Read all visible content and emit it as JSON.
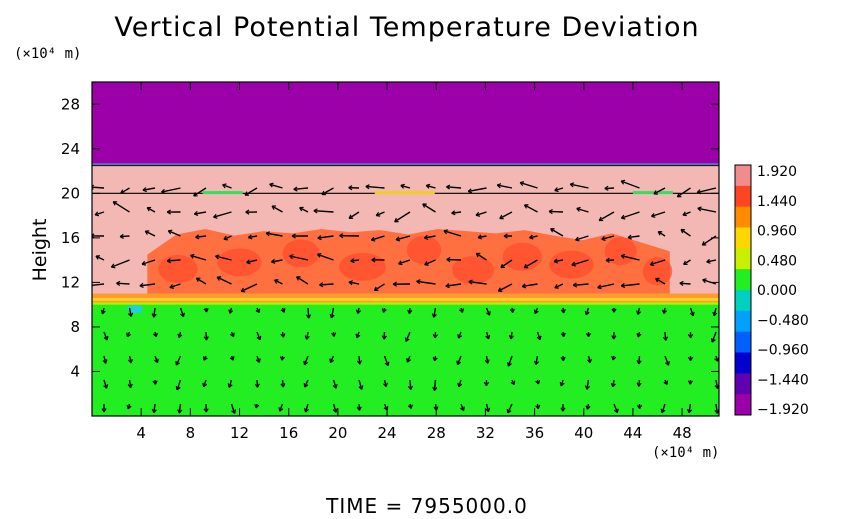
{
  "chart_data": {
    "type": "heatmap",
    "title": "Vertical Potential Temperature Deviation",
    "ylabel": "Height",
    "xlabel": "",
    "x_unit": "(×10⁴ m)",
    "y_unit": "(×10⁴ m)",
    "xlim": [
      0,
      51
    ],
    "ylim": [
      0,
      30
    ],
    "x_ticks": [
      "4",
      "8",
      "12",
      "16",
      "20",
      "24",
      "28",
      "32",
      "36",
      "40",
      "44",
      "48"
    ],
    "y_ticks": [
      "4",
      "8",
      "12",
      "16",
      "20",
      "24",
      "28"
    ],
    "colorbar": {
      "labels": [
        "1.920",
        "1.440",
        "0.960",
        "0.480",
        "0.000",
        "−0.480",
        "−0.960",
        "−1.440",
        "−1.920"
      ],
      "colors": [
        "#f08c8c",
        "#ff4422",
        "#ff8c00",
        "#ffd700",
        "#c8f000",
        "#22ee22",
        "#00d0c0",
        "#00a0ff",
        "#0060ff",
        "#0000d0",
        "#6000b0",
        "#9c00a8"
      ]
    },
    "layers": [
      {
        "name": "top",
        "y_range": [
          22.5,
          30
        ],
        "value": -1.92,
        "color": "#9c00a8"
      },
      {
        "name": "upper band",
        "y_range": [
          20,
          22.5
        ],
        "value": 1.92,
        "color": "#f4b8b4"
      },
      {
        "name": "middle band",
        "y_range": [
          10,
          20
        ],
        "value": 1.92,
        "color": "#f4b8b4"
      },
      {
        "name": "warm core",
        "y_range": [
          11,
          17
        ],
        "value": 1.44,
        "color": "#ff7040"
      },
      {
        "name": "bottom",
        "y_range": [
          0,
          10
        ],
        "value": 0.0,
        "color": "#22ee22"
      }
    ],
    "footer": "TIME  =  7955000.0"
  }
}
